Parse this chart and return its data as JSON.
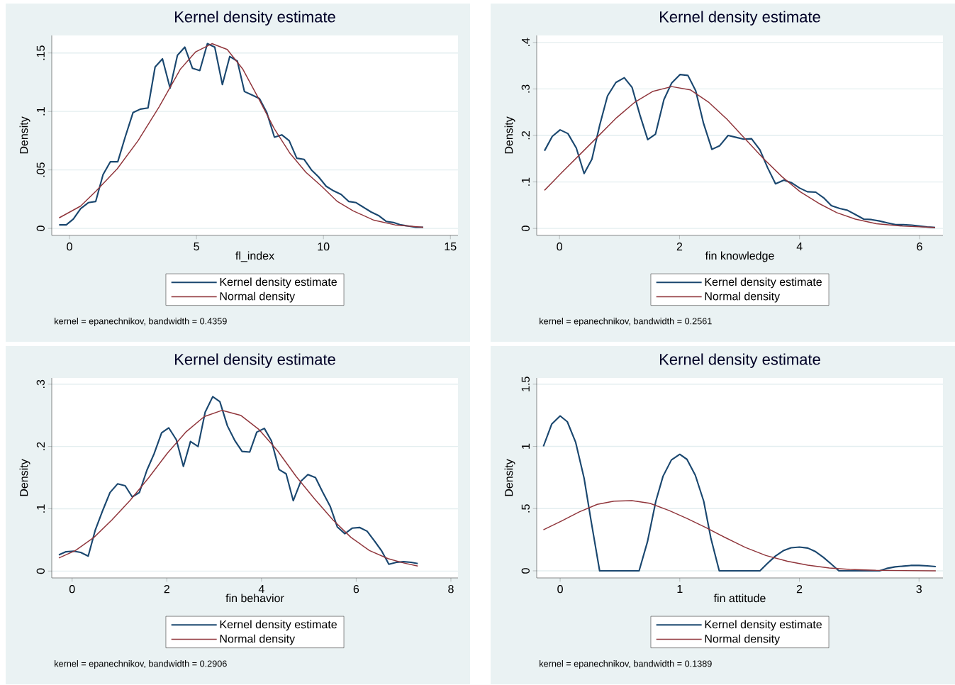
{
  "chart_data": [
    {
      "type": "line",
      "title": "Kernel density estimate",
      "xlabel": "fl_index",
      "ylabel": "Density",
      "annotations": [
        "kernel = epanechnikov, bandwidth = 0.4359"
      ],
      "xlim": [
        -0.7,
        15.3
      ],
      "ylim": [
        -0.006,
        0.165
      ],
      "xticks": [
        0,
        5,
        10,
        15
      ],
      "yticks": [
        0,
        {
          "value": 0.05,
          "label": ".05"
        },
        {
          "value": 0.1,
          "label": ".1"
        },
        {
          "value": 0.15,
          "label": ".15"
        }
      ],
      "grid": "y",
      "legend": "bottom",
      "series": [
        {
          "name": "Kernel density estimate",
          "color": "#1a476f",
          "x": [
            -0.41,
            -0.13,
            0.15,
            0.44,
            0.74,
            1.03,
            1.32,
            1.61,
            1.9,
            2.19,
            2.5,
            2.79,
            3.09,
            3.37,
            3.66,
            3.96,
            4.25,
            4.54,
            4.84,
            5.13,
            5.43,
            5.72,
            6.02,
            6.31,
            6.61,
            6.89,
            7.19,
            7.48,
            7.77,
            8.07,
            8.36,
            8.65,
            8.95,
            9.24,
            9.53,
            9.81,
            10.11,
            10.41,
            10.7,
            11.0,
            11.29,
            11.58,
            11.88,
            12.17,
            12.47,
            12.76,
            13.05,
            13.34,
            13.64,
            13.93
          ],
          "values": [
            0.003,
            0.003,
            0.008,
            0.017,
            0.022,
            0.023,
            0.046,
            0.057,
            0.057,
            0.078,
            0.099,
            0.102,
            0.103,
            0.138,
            0.145,
            0.12,
            0.148,
            0.155,
            0.137,
            0.135,
            0.158,
            0.155,
            0.123,
            0.147,
            0.143,
            0.117,
            0.114,
            0.111,
            0.099,
            0.078,
            0.08,
            0.075,
            0.06,
            0.059,
            0.05,
            0.044,
            0.036,
            0.032,
            0.029,
            0.023,
            0.022,
            0.018,
            0.014,
            0.011,
            0.006,
            0.005,
            0.003,
            0.002,
            0.001,
            0.001
          ]
        },
        {
          "name": "Normal density",
          "color": "#90353b",
          "x": [
            -0.41,
            0.43,
            1.05,
            1.88,
            2.7,
            3.53,
            4.36,
            4.97,
            5.61,
            6.21,
            6.83,
            7.45,
            8.07,
            8.69,
            9.31,
            9.93,
            10.55,
            11.17,
            11.99,
            12.82,
            13.93
          ],
          "values": [
            0.009,
            0.019,
            0.032,
            0.051,
            0.075,
            0.104,
            0.136,
            0.151,
            0.158,
            0.153,
            0.136,
            0.111,
            0.085,
            0.064,
            0.048,
            0.036,
            0.023,
            0.015,
            0.007,
            0.003,
            0.001
          ]
        }
      ]
    },
    {
      "type": "line",
      "title": "Kernel density estimate",
      "xlabel": "fin knowledge",
      "ylabel": "Density",
      "annotations": [
        "kernel = epanechnikov, bandwidth = 0.2561"
      ],
      "xlim": [
        -0.38,
        6.39
      ],
      "ylim": [
        -0.015,
        0.415
      ],
      "xticks": [
        0,
        2,
        4,
        6
      ],
      "yticks": [
        0,
        {
          "value": 0.1,
          "label": ".1"
        },
        {
          "value": 0.2,
          "label": ".2"
        },
        {
          "value": 0.3,
          "label": ".3"
        },
        {
          "value": 0.4,
          "label": ".4"
        }
      ],
      "grid": "y",
      "legend": "bottom",
      "series": [
        {
          "name": "Kernel density estimate",
          "color": "#1a476f",
          "x": [
            -0.25,
            -0.12,
            0.01,
            0.14,
            0.28,
            0.41,
            0.54,
            0.67,
            0.8,
            0.94,
            1.08,
            1.21,
            1.34,
            1.47,
            1.6,
            1.74,
            1.87,
            2.01,
            2.14,
            2.27,
            2.4,
            2.54,
            2.67,
            2.81,
            2.94,
            3.07,
            3.2,
            3.34,
            3.47,
            3.6,
            3.74,
            3.87,
            4.0,
            4.13,
            4.27,
            4.4,
            4.53,
            4.67,
            4.8,
            4.93,
            5.07,
            5.2,
            5.33,
            5.46,
            5.6,
            5.73,
            5.87,
            6.0,
            6.13,
            6.26
          ],
          "values": [
            0.167,
            0.198,
            0.212,
            0.204,
            0.173,
            0.118,
            0.149,
            0.222,
            0.285,
            0.314,
            0.324,
            0.303,
            0.244,
            0.191,
            0.203,
            0.277,
            0.313,
            0.331,
            0.329,
            0.296,
            0.226,
            0.17,
            0.178,
            0.2,
            0.196,
            0.192,
            0.193,
            0.169,
            0.13,
            0.096,
            0.104,
            0.098,
            0.087,
            0.079,
            0.078,
            0.066,
            0.049,
            0.043,
            0.039,
            0.03,
            0.02,
            0.019,
            0.016,
            0.012,
            0.008,
            0.008,
            0.007,
            0.005,
            0.003,
            0.002
          ]
        },
        {
          "name": "Normal density",
          "color": "#90353b",
          "x": [
            -0.25,
            0.03,
            0.34,
            0.65,
            0.95,
            1.26,
            1.56,
            1.87,
            2.18,
            2.48,
            2.79,
            3.09,
            3.4,
            3.71,
            4.01,
            4.32,
            4.62,
            4.93,
            5.28,
            5.72,
            6.26
          ],
          "values": [
            0.082,
            0.119,
            0.159,
            0.199,
            0.238,
            0.272,
            0.295,
            0.305,
            0.298,
            0.272,
            0.235,
            0.193,
            0.15,
            0.111,
            0.079,
            0.054,
            0.034,
            0.02,
            0.01,
            0.005,
            0.002
          ]
        }
      ]
    },
    {
      "type": "line",
      "title": "Kernel density estimate",
      "xlabel": "fin behavior",
      "ylabel": "Density",
      "annotations": [
        "kernel = epanechnikov, bandwidth = 0.2906"
      ],
      "xlim": [
        -0.43,
        8.15
      ],
      "ylim": [
        -0.011,
        0.31
      ],
      "xticks": [
        0,
        2,
        4,
        6,
        8
      ],
      "yticks": [
        0,
        {
          "value": 0.1,
          "label": ".1"
        },
        {
          "value": 0.2,
          "label": ".2"
        },
        {
          "value": 0.3,
          "label": ".3"
        }
      ],
      "grid": "y",
      "legend": "bottom",
      "series": [
        {
          "name": "Kernel density estimate",
          "color": "#1a476f",
          "x": [
            -0.28,
            -0.13,
            0.03,
            0.18,
            0.34,
            0.49,
            0.65,
            0.8,
            0.96,
            1.12,
            1.27,
            1.42,
            1.58,
            1.73,
            1.89,
            2.04,
            2.2,
            2.35,
            2.5,
            2.66,
            2.81,
            2.97,
            3.12,
            3.28,
            3.44,
            3.59,
            3.75,
            3.9,
            4.06,
            4.21,
            4.37,
            4.52,
            4.67,
            4.83,
            4.98,
            5.14,
            5.29,
            5.45,
            5.6,
            5.76,
            5.92,
            6.07,
            6.23,
            6.38,
            6.54,
            6.69,
            6.85,
            7.0,
            7.16,
            7.3
          ],
          "values": [
            0.026,
            0.031,
            0.032,
            0.03,
            0.024,
            0.066,
            0.098,
            0.126,
            0.14,
            0.137,
            0.119,
            0.126,
            0.162,
            0.188,
            0.222,
            0.23,
            0.211,
            0.168,
            0.208,
            0.2,
            0.255,
            0.28,
            0.272,
            0.233,
            0.209,
            0.192,
            0.191,
            0.223,
            0.229,
            0.209,
            0.163,
            0.156,
            0.113,
            0.144,
            0.155,
            0.15,
            0.127,
            0.104,
            0.071,
            0.06,
            0.069,
            0.07,
            0.064,
            0.049,
            0.032,
            0.011,
            0.014,
            0.015,
            0.014,
            0.012
          ]
        },
        {
          "name": "Normal density",
          "color": "#90353b",
          "x": [
            -0.28,
            0.07,
            0.46,
            0.84,
            1.23,
            1.62,
            2.01,
            2.4,
            2.79,
            3.17,
            3.56,
            3.95,
            4.34,
            4.73,
            5.12,
            5.51,
            5.89,
            6.28,
            6.67,
            7.0,
            7.3
          ],
          "values": [
            0.021,
            0.033,
            0.054,
            0.082,
            0.114,
            0.15,
            0.189,
            0.223,
            0.248,
            0.258,
            0.25,
            0.227,
            0.193,
            0.152,
            0.116,
            0.082,
            0.054,
            0.033,
            0.02,
            0.013,
            0.008
          ]
        }
      ]
    },
    {
      "type": "line",
      "title": "Kernel density estimate",
      "xlabel": "fin attitude",
      "ylabel": "Density",
      "annotations": [
        "kernel = epanechnikov, bandwidth = 0.1389"
      ],
      "xlim": [
        -0.196,
        3.2
      ],
      "ylim": [
        -0.057,
        1.55
      ],
      "xticks": [
        0,
        1,
        2,
        3
      ],
      "yticks": [
        0,
        {
          "value": 0.5,
          "label": ".5"
        },
        1,
        1.5
      ],
      "grid": "y",
      "legend": "bottom",
      "series": [
        {
          "name": "Kernel density estimate",
          "color": "#1a476f",
          "x": [
            -0.14,
            -0.07,
            0.0,
            0.06,
            0.13,
            0.2,
            0.26,
            0.33,
            0.4,
            0.46,
            0.53,
            0.6,
            0.66,
            0.73,
            0.8,
            0.86,
            0.93,
            1.0,
            1.06,
            1.13,
            1.2,
            1.26,
            1.33,
            1.4,
            1.47,
            1.53,
            1.6,
            1.67,
            1.73,
            1.8,
            1.87,
            1.93,
            2.0,
            2.07,
            2.13,
            2.2,
            2.27,
            2.33,
            2.4,
            2.47,
            2.53,
            2.6,
            2.67,
            2.73,
            2.8,
            2.87,
            2.93,
            3.0,
            3.07,
            3.14
          ],
          "values": [
            1.0,
            1.18,
            1.245,
            1.198,
            1.032,
            0.745,
            0.394,
            0,
            0,
            0,
            0,
            0,
            0,
            0.234,
            0.56,
            0.76,
            0.891,
            0.936,
            0.896,
            0.768,
            0.56,
            0.262,
            0,
            0,
            0,
            0,
            0,
            0,
            0.057,
            0.119,
            0.164,
            0.185,
            0.191,
            0.183,
            0.157,
            0.109,
            0.051,
            0,
            0,
            0,
            0,
            0,
            0,
            0.019,
            0.032,
            0.038,
            0.043,
            0.043,
            0.04,
            0.034
          ]
        },
        {
          "name": "Normal density",
          "color": "#90353b",
          "x": [
            -0.14,
            0.01,
            0.16,
            0.31,
            0.45,
            0.6,
            0.75,
            0.91,
            1.06,
            1.22,
            1.37,
            1.55,
            1.72,
            1.9,
            2.07,
            2.25,
            2.42,
            2.64,
            2.86,
            3.14
          ],
          "values": [
            0.33,
            0.4,
            0.474,
            0.534,
            0.56,
            0.564,
            0.543,
            0.485,
            0.421,
            0.347,
            0.272,
            0.187,
            0.123,
            0.077,
            0.045,
            0.023,
            0.011,
            0.004,
            0.002,
            0.0
          ]
        }
      ]
    }
  ]
}
